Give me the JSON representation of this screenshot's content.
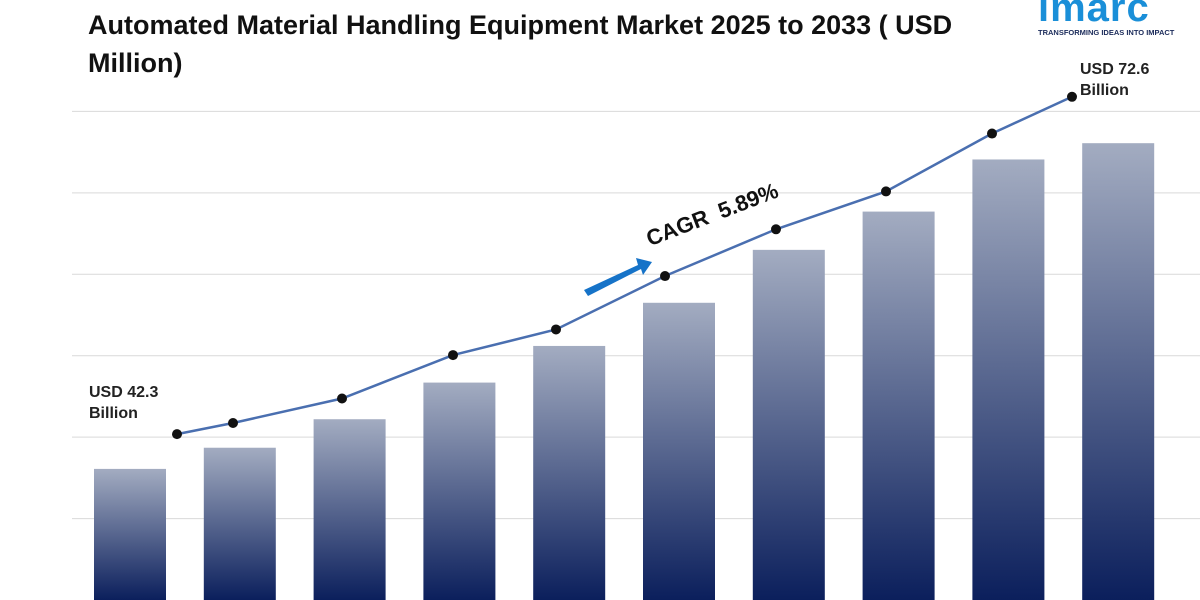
{
  "chart_data": {
    "type": "bar-line",
    "title": "Automated Material Handling Equipment Market 2025 to 2033 ( USD Million)",
    "categories": [
      null,
      null,
      null,
      null,
      null,
      null,
      null,
      null,
      null,
      null
    ],
    "ylim": [
      0,
      7
    ],
    "yticks": [
      1,
      2,
      3,
      4,
      5,
      6
    ],
    "grid": true,
    "tick_labels": false,
    "y2lim": [
      27.4,
      78.6
    ],
    "series": [
      {
        "type": "bar",
        "color": "#0b1f5c",
        "values": [
          1.61,
          1.87,
          2.22,
          2.67,
          3.12,
          3.65,
          4.3,
          4.77,
          5.41,
          5.61
        ]
      },
      {
        "type": "line",
        "axis": "y2",
        "color": "#4a6fb0",
        "values": [
          42.3,
          43.3,
          45.5,
          49.4,
          51.7,
          56.5,
          60.7,
          64.1,
          69.3,
          72.6
        ],
        "value_labels": [
          "USD 42.3 Billion",
          null,
          null,
          null,
          null,
          null,
          null,
          null,
          null,
          "USD 72.6 Billion"
        ]
      }
    ],
    "cagr_label": "CAGR 5.89%"
  },
  "logo": {
    "name": "imarc",
    "tagline": "TRANSFORMING IDEAS INTO IMPACT"
  }
}
